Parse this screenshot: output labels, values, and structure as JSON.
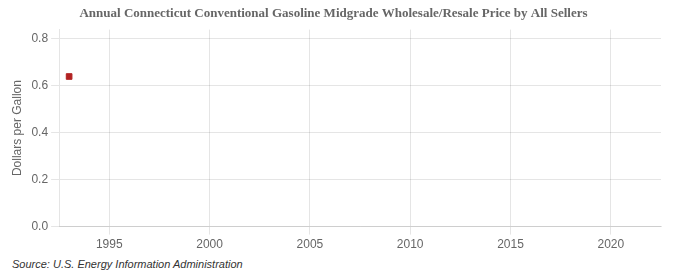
{
  "chart_data": {
    "type": "scatter",
    "title": "Annual Connecticut Conventional Gasoline Midgrade Wholesale/Resale Price by All Sellers",
    "y_label": "Dollars per Gallon",
    "annotations": [
      "Source: U.S. Energy Information Administration"
    ],
    "x": [
      1993
    ],
    "values": [
      0.64
    ],
    "color": "#b22222",
    "marker": "square",
    "xlim": [
      1992.5,
      2022.5
    ],
    "xticks": [
      1995,
      2000,
      2005,
      2010,
      2015,
      2020
    ],
    "ylim": [
      0.0,
      0.84
    ],
    "yticks": [
      {
        "value": 0.0,
        "label": "0.0"
      },
      0.2,
      0.4,
      0.6,
      0.8
    ],
    "grid": true
  }
}
